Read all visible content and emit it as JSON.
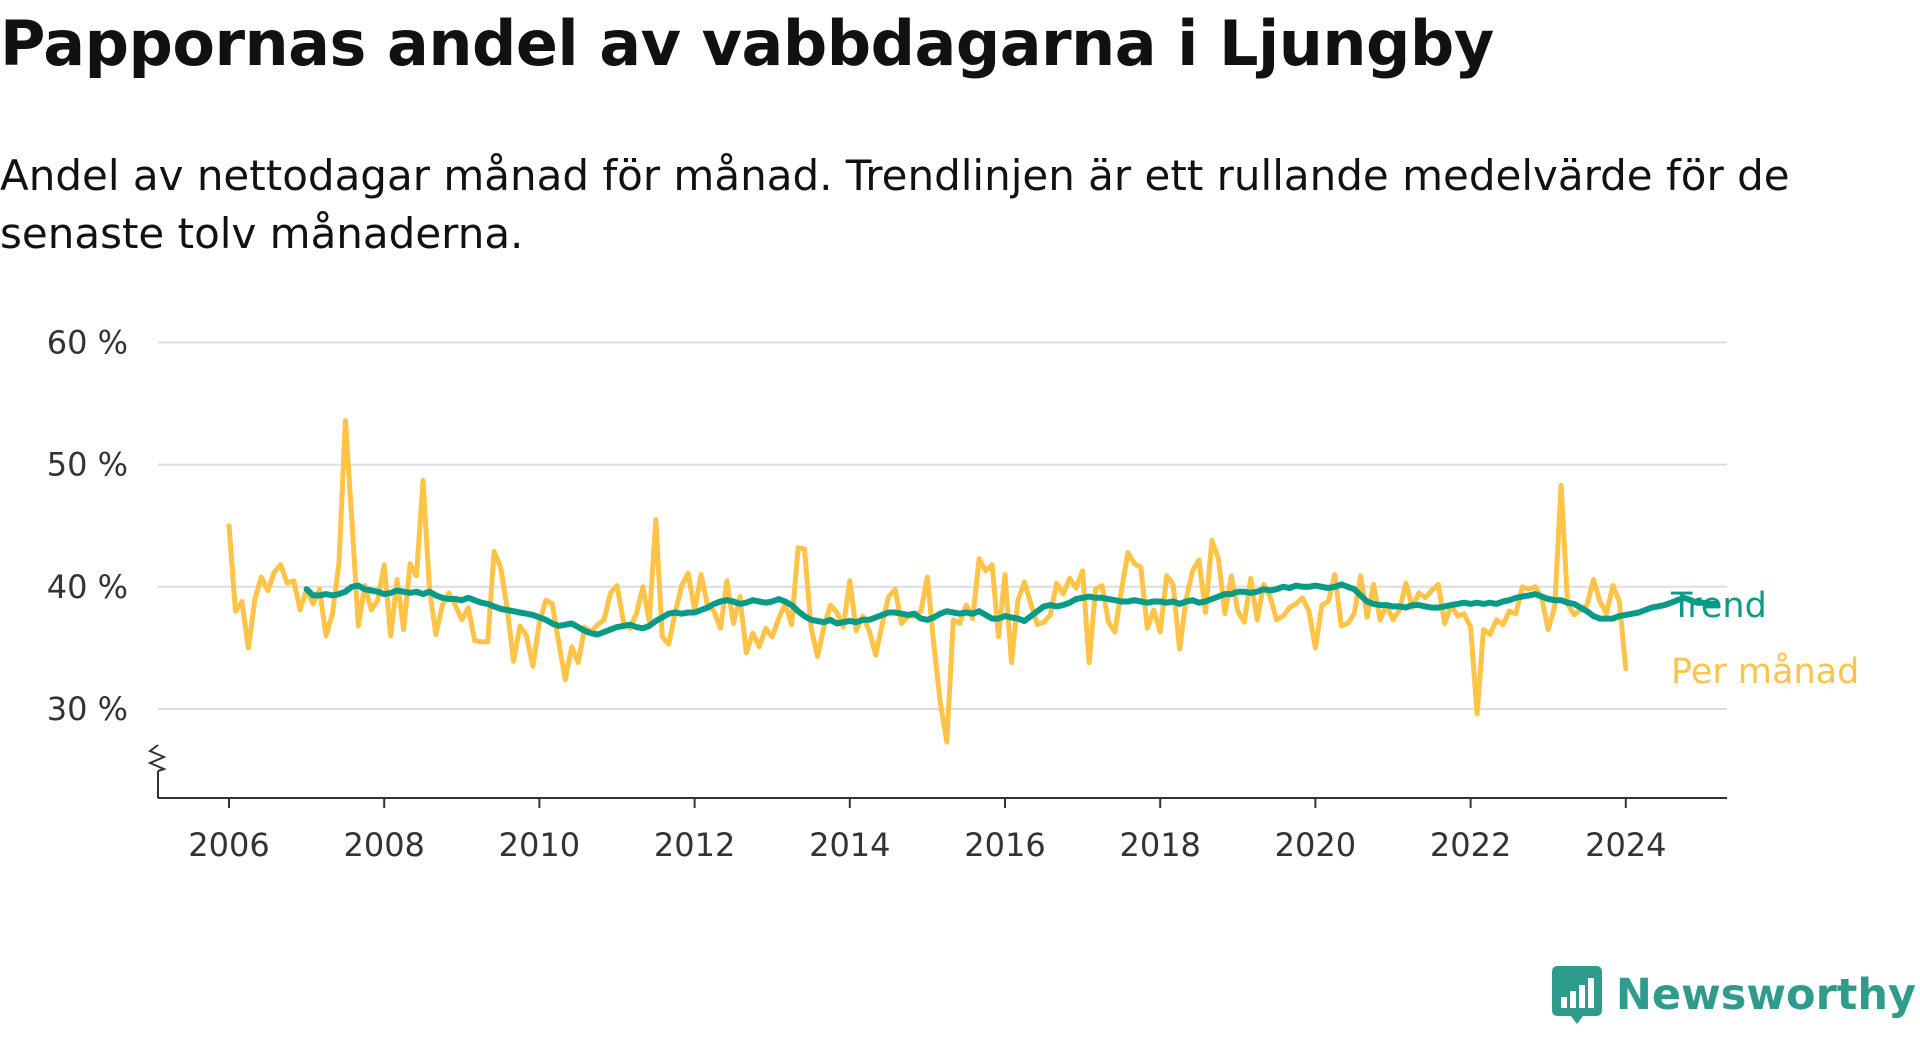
{
  "title": "Pappornas andel av vabbdagarna i Ljungby",
  "subtitle": "Andel av nettodagar månad för månad. Trendlinjen är ett rullande medelvärde för de senaste tolv månaderna.",
  "brand": {
    "name": "Newsworthy",
    "icon": "newsworthy-logo-icon",
    "color": "#2f9b8d"
  },
  "colors": {
    "monthly": "#ffc348",
    "trend": "#0a9a88",
    "grid": "#dddddd",
    "axis": "#333333"
  },
  "chart_data": {
    "type": "line",
    "xlabel": "",
    "ylabel": "",
    "xlim": [
      2006,
      2024.4
    ],
    "ylim": [
      30,
      60
    ],
    "y_ticks": [
      {
        "value": 30,
        "label": "30 %"
      },
      {
        "value": 40,
        "label": "40 %"
      },
      {
        "value": 50,
        "label": "50 %"
      },
      {
        "value": 60,
        "label": "60 %"
      }
    ],
    "x_ticks": [
      {
        "value": 2006,
        "label": "2006"
      },
      {
        "value": 2008,
        "label": "2008"
      },
      {
        "value": 2010,
        "label": "2010"
      },
      {
        "value": 2012,
        "label": "2012"
      },
      {
        "value": 2014,
        "label": "2014"
      },
      {
        "value": 2016,
        "label": "2016"
      },
      {
        "value": 2018,
        "label": "2018"
      },
      {
        "value": 2020,
        "label": "2020"
      },
      {
        "value": 2022,
        "label": "2022"
      },
      {
        "value": 2024,
        "label": "2024"
      }
    ],
    "axis_break": true,
    "grid": true,
    "legend": "direct labels at line ends",
    "series": [
      {
        "name": "Trend",
        "key": "trend",
        "start": "2007-01",
        "values": [
          39.8,
          39.3,
          39.3,
          39.4,
          39.3,
          39.4,
          39.6,
          40.0,
          40.1,
          39.8,
          39.7,
          39.6,
          39.4,
          39.5,
          39.7,
          39.6,
          39.5,
          39.6,
          39.4,
          39.6,
          39.3,
          39.1,
          39.0,
          39.0,
          38.9,
          39.1,
          38.9,
          38.7,
          38.6,
          38.4,
          38.2,
          38.1,
          38.0,
          37.9,
          37.8,
          37.7,
          37.5,
          37.3,
          37.0,
          36.8,
          36.9,
          37.0,
          36.7,
          36.4,
          36.2,
          36.1,
          36.3,
          36.5,
          36.7,
          36.8,
          36.9,
          36.7,
          36.6,
          36.8,
          37.2,
          37.5,
          37.8,
          37.9,
          37.8,
          37.9,
          37.9,
          38.1,
          38.3,
          38.6,
          38.8,
          38.9,
          38.8,
          38.6,
          38.7,
          38.9,
          38.8,
          38.7,
          38.8,
          39.0,
          38.8,
          38.5,
          38.0,
          37.6,
          37.3,
          37.2,
          37.1,
          37.3,
          37.0,
          37.1,
          37.2,
          37.1,
          37.3,
          37.3,
          37.5,
          37.7,
          37.9,
          37.9,
          37.8,
          37.7,
          37.8,
          37.4,
          37.3,
          37.5,
          37.8,
          38.0,
          37.9,
          37.8,
          37.9,
          37.8,
          38.0,
          37.7,
          37.4,
          37.4,
          37.6,
          37.5,
          37.4,
          37.2,
          37.6,
          38.0,
          38.4,
          38.5,
          38.4,
          38.5,
          38.7,
          39.0,
          39.1,
          39.2,
          39.1,
          39.1,
          39.0,
          38.9,
          38.8,
          38.8,
          38.9,
          38.8,
          38.7,
          38.8,
          38.8,
          38.7,
          38.8,
          38.6,
          38.8,
          38.9,
          38.7,
          38.8,
          39.0,
          39.2,
          39.4,
          39.4,
          39.6,
          39.6,
          39.5,
          39.6,
          39.8,
          39.7,
          39.8,
          40.0,
          39.9,
          40.1,
          40.0,
          40.0,
          40.1,
          40.0,
          39.9,
          40.0,
          40.2,
          40.0,
          39.8,
          39.3,
          38.8,
          38.6,
          38.5,
          38.5,
          38.4,
          38.4,
          38.3,
          38.5,
          38.5,
          38.4,
          38.3,
          38.3,
          38.4,
          38.5,
          38.6,
          38.7,
          38.6,
          38.7,
          38.6,
          38.7,
          38.6,
          38.8,
          38.9,
          39.1,
          39.2,
          39.3,
          39.4,
          39.2,
          39.0,
          38.9,
          38.9,
          38.7,
          38.6,
          38.3,
          38.0,
          37.6,
          37.4,
          37.4,
          37.4,
          37.6,
          37.7,
          37.8,
          37.9,
          38.1,
          38.3,
          38.4,
          38.5,
          38.7,
          38.9,
          39.1,
          38.9,
          38.7,
          38.7,
          38.6,
          38.6
        ]
      },
      {
        "name": "Per månad",
        "key": "monthly",
        "start": "2006-01",
        "values": [
          45.0,
          38.0,
          38.8,
          35.0,
          39.0,
          40.8,
          39.7,
          41.2,
          41.8,
          40.3,
          40.5,
          38.1,
          39.8,
          38.6,
          39.8,
          36.0,
          37.8,
          41.9,
          53.6,
          45.4,
          36.8,
          40.1,
          38.1,
          38.9,
          41.8,
          36.0,
          40.6,
          36.5,
          41.9,
          40.9,
          48.7,
          39.8,
          36.1,
          38.5,
          39.5,
          38.5,
          37.3,
          38.3,
          35.6,
          35.5,
          35.5,
          42.9,
          41.6,
          38.3,
          33.9,
          36.8,
          36.0,
          33.5,
          37.1,
          38.9,
          38.6,
          35.4,
          32.4,
          35.1,
          33.8,
          36.7,
          36.3,
          36.9,
          37.3,
          39.5,
          40.1,
          37.1,
          36.6,
          37.8,
          40.0,
          37.2,
          45.5,
          35.9,
          35.3,
          37.9,
          40.1,
          41.1,
          38.1,
          41.0,
          38.5,
          38.0,
          36.6,
          40.5,
          37.0,
          39.2,
          34.6,
          36.2,
          35.1,
          36.6,
          35.9,
          37.4,
          38.6,
          36.9,
          43.2,
          43.1,
          36.7,
          34.3,
          36.7,
          38.5,
          37.9,
          36.7,
          40.5,
          36.4,
          37.6,
          36.4,
          34.4,
          36.9,
          39.2,
          39.8,
          37.0,
          37.6,
          37.6,
          38.0,
          40.8,
          35.2,
          30.5,
          27.3,
          37.3,
          37.0,
          38.5,
          37.4,
          42.3,
          41.3,
          41.8,
          35.9,
          41.0,
          33.8,
          38.9,
          40.4,
          38.6,
          36.9,
          37.1,
          37.7,
          40.3,
          39.4,
          40.7,
          39.9,
          41.3,
          33.8,
          39.8,
          40.1,
          37.1,
          36.3,
          39.7,
          42.8,
          41.9,
          41.6,
          36.6,
          38.1,
          36.3,
          40.9,
          40.2,
          34.9,
          39.0,
          41.3,
          42.2,
          37.9,
          43.8,
          42.3,
          37.8,
          40.9,
          38.0,
          37.1,
          40.7,
          37.3,
          40.2,
          39.2,
          37.3,
          37.6,
          38.3,
          38.6,
          39.1,
          38.0,
          35.0,
          38.5,
          38.8,
          41.0,
          36.8,
          37.0,
          37.8,
          40.9,
          37.5,
          40.2,
          37.3,
          38.5,
          37.3,
          38.1,
          40.3,
          38.3,
          39.5,
          39.1,
          39.7,
          40.2,
          37.0,
          38.5,
          37.6,
          37.8,
          36.7,
          29.6,
          36.5,
          36.1,
          37.3,
          36.9,
          38.0,
          37.8,
          40.0,
          39.8,
          40.0,
          39.1,
          36.5,
          38.4,
          48.3,
          38.6,
          37.7,
          38.1,
          38.5,
          40.6,
          38.8,
          37.8,
          40.1,
          38.8,
          33.3
        ]
      }
    ]
  }
}
